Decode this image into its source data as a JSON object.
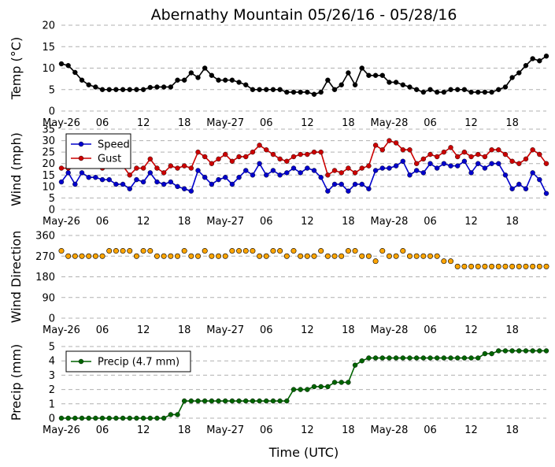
{
  "chart_data": {
    "title": "Abernathy Mountain 05/26/16 - 05/28/16",
    "xlabel": "Time (UTC)",
    "x_ticks": [
      "May-26",
      "06",
      "12",
      "18",
      "May-27",
      "06",
      "12",
      "18",
      "May-28",
      "06",
      "12",
      "18"
    ],
    "x_hours": [
      0,
      6,
      12,
      18,
      24,
      30,
      36,
      42,
      48,
      54,
      60,
      66
    ],
    "x_range_hours": [
      0,
      71
    ],
    "grid": "horizontal dashed",
    "panels": [
      {
        "id": "temp",
        "type": "line",
        "ylabel": "Temp (°C)",
        "ylim": [
          0,
          20
        ],
        "yticks": [
          0,
          5,
          10,
          15,
          20
        ],
        "series": [
          {
            "color": "#000000",
            "x": [
              0,
              1,
              2,
              3,
              4,
              5,
              6,
              7,
              8,
              9,
              10,
              11,
              12,
              13,
              14,
              15,
              16,
              17,
              18,
              19,
              20,
              21,
              22,
              23,
              24,
              25,
              26,
              27,
              28,
              29,
              30,
              31,
              32,
              33,
              34,
              35,
              36,
              37,
              38,
              39,
              40,
              41,
              42,
              43,
              44,
              45,
              46,
              47,
              48,
              49,
              50,
              51,
              52,
              53,
              54,
              55,
              56,
              57,
              58,
              59,
              60,
              61,
              62,
              63,
              64,
              65,
              66,
              67,
              68,
              69,
              70,
              71
            ],
            "values": [
              11,
              10.6,
              9,
              7.2,
              6.1,
              5.6,
              5,
              5,
              5,
              5,
              5,
              5,
              5,
              5.5,
              5.6,
              5.6,
              5.6,
              7.2,
              7.2,
              8.9,
              7.8,
              10,
              8.3,
              7.2,
              7.2,
              7.2,
              6.7,
              6.1,
              5,
              5,
              5,
              5,
              5,
              4.4,
              4.4,
              4.4,
              4.4,
              3.9,
              4.4,
              7.2,
              5,
              6.1,
              8.9,
              6.1,
              10,
              8.3,
              8.3,
              8.3,
              6.7,
              6.7,
              6.1,
              5.6,
              5,
              4.4,
              5,
              4.4,
              4.4,
              5,
              5,
              5,
              4.4,
              4.4,
              4.4,
              4.4,
              5,
              5.6,
              7.8,
              8.9,
              10.6,
              12.2,
              11.7,
              12.8
            ]
          }
        ]
      },
      {
        "id": "wind",
        "type": "line",
        "ylabel": "Wind (mph)",
        "ylim": [
          0,
          35
        ],
        "yticks": [
          0,
          5,
          10,
          15,
          20,
          25,
          30,
          35
        ],
        "legend": "upper-left",
        "series": [
          {
            "name": "Speed",
            "color": "#0000cc",
            "x": [
              0,
              1,
              2,
              3,
              4,
              5,
              6,
              7,
              8,
              9,
              10,
              11,
              12,
              13,
              14,
              15,
              16,
              17,
              18,
              19,
              20,
              21,
              22,
              23,
              24,
              25,
              26,
              27,
              28,
              29,
              30,
              31,
              32,
              33,
              34,
              35,
              36,
              37,
              38,
              39,
              40,
              41,
              42,
              43,
              44,
              45,
              46,
              47,
              48,
              49,
              50,
              51,
              52,
              53,
              54,
              55,
              56,
              57,
              58,
              59,
              60,
              61,
              62,
              63,
              64,
              65,
              66,
              67,
              68,
              69,
              70,
              71
            ],
            "values": [
              12,
              16,
              11,
              16,
              14,
              14,
              13,
              13,
              11,
              11,
              9,
              13,
              12,
              16,
              12,
              11,
              12,
              10,
              9,
              8,
              17,
              14,
              11,
              13,
              14,
              11,
              14,
              17,
              15,
              20,
              15,
              17,
              15,
              16,
              18,
              16,
              18,
              17,
              14,
              8,
              11,
              11,
              8,
              11,
              11,
              9,
              17,
              18,
              18,
              19,
              21,
              15,
              17,
              16,
              20,
              18,
              20,
              19,
              19,
              21,
              16,
              20,
              18,
              20,
              20,
              15,
              9,
              11,
              9,
              16,
              13,
              7
            ]
          },
          {
            "name": "Gust",
            "color": "#cc0000",
            "x": [
              0,
              1,
              2,
              3,
              4,
              5,
              6,
              7,
              8,
              9,
              10,
              11,
              12,
              13,
              14,
              15,
              16,
              17,
              18,
              19,
              20,
              21,
              22,
              23,
              24,
              25,
              26,
              27,
              28,
              29,
              30,
              31,
              32,
              33,
              34,
              35,
              36,
              37,
              38,
              39,
              40,
              41,
              42,
              43,
              44,
              45,
              46,
              47,
              48,
              49,
              50,
              51,
              52,
              53,
              54,
              55,
              56,
              57,
              58,
              59,
              60,
              61,
              62,
              63,
              64,
              65,
              66,
              67,
              68,
              69,
              70,
              71
            ],
            "values": [
              18,
              18,
              19,
              19,
              19,
              19,
              18,
              19,
              19,
              19,
              15,
              18,
              18,
              22,
              18,
              16,
              19,
              18,
              19,
              18,
              25,
              23,
              20,
              22,
              24,
              21,
              23,
              23,
              25,
              28,
              26,
              24,
              22,
              21,
              23,
              24,
              24,
              25,
              25,
              15,
              17,
              16,
              18,
              16,
              18,
              19,
              28,
              26,
              30,
              29,
              26,
              26,
              20,
              22,
              24,
              23,
              25,
              27,
              23,
              25,
              23,
              24,
              23,
              26,
              26,
              24,
              21,
              20,
              22,
              26,
              24,
              20
            ]
          }
        ]
      },
      {
        "id": "direction",
        "type": "scatter",
        "ylabel": "Wind Direction",
        "ylim": [
          0,
          360
        ],
        "yticks": [
          0,
          90,
          180,
          270,
          360
        ],
        "series": [
          {
            "color": "#ffa500",
            "x": [
              0,
              1,
              2,
              3,
              4,
              5,
              6,
              7,
              8,
              9,
              10,
              11,
              12,
              13,
              14,
              15,
              16,
              17,
              18,
              19,
              20,
              21,
              22,
              23,
              24,
              25,
              26,
              27,
              28,
              29,
              30,
              31,
              32,
              33,
              34,
              35,
              36,
              37,
              38,
              39,
              40,
              41,
              42,
              43,
              44,
              45,
              46,
              47,
              48,
              49,
              50,
              51,
              52,
              53,
              54,
              55,
              56,
              57,
              58,
              59,
              60,
              61,
              62,
              63,
              64,
              65,
              66,
              67,
              68,
              69,
              70,
              71
            ],
            "values": [
              293,
              270,
              270,
              270,
              270,
              270,
              270,
              293,
              293,
              293,
              293,
              270,
              293,
              293,
              270,
              270,
              270,
              270,
              293,
              270,
              270,
              293,
              270,
              270,
              270,
              293,
              293,
              293,
              293,
              270,
              270,
              293,
              293,
              270,
              293,
              270,
              270,
              270,
              293,
              270,
              270,
              270,
              293,
              293,
              270,
              270,
              248,
              293,
              270,
              270,
              293,
              270,
              270,
              270,
              270,
              270,
              248,
              248,
              225,
              225,
              225,
              225,
              225,
              225,
              225,
              225,
              225,
              225,
              225,
              225,
              225,
              225
            ]
          }
        ]
      },
      {
        "id": "precip",
        "type": "line",
        "ylabel": "Precip (mm)",
        "ylim": [
          0,
          5
        ],
        "yticks": [
          0,
          1,
          2,
          3,
          4,
          5
        ],
        "legend": "upper-left",
        "series": [
          {
            "name": "Precip (4.7 mm)",
            "color": "#006400",
            "x": [
              0,
              1,
              2,
              3,
              4,
              5,
              6,
              7,
              8,
              9,
              10,
              11,
              12,
              13,
              14,
              15,
              16,
              17,
              18,
              19,
              20,
              21,
              22,
              23,
              24,
              25,
              26,
              27,
              28,
              29,
              30,
              31,
              32,
              33,
              34,
              35,
              36,
              37,
              38,
              39,
              40,
              41,
              42,
              43,
              44,
              45,
              46,
              47,
              48,
              49,
              50,
              51,
              52,
              53,
              54,
              55,
              56,
              57,
              58,
              59,
              60,
              61,
              62,
              63,
              64,
              65,
              66,
              67,
              68,
              69,
              70,
              71
            ],
            "values": [
              0,
              0,
              0,
              0,
              0,
              0,
              0,
              0,
              0,
              0,
              0,
              0,
              0,
              0,
              0,
              0,
              0.25,
              0.25,
              1.2,
              1.2,
              1.2,
              1.2,
              1.2,
              1.2,
              1.2,
              1.2,
              1.2,
              1.2,
              1.2,
              1.2,
              1.2,
              1.2,
              1.2,
              1.2,
              2,
              2,
              2,
              2.2,
              2.2,
              2.2,
              2.5,
              2.5,
              2.5,
              3.7,
              4,
              4.2,
              4.2,
              4.2,
              4.2,
              4.2,
              4.2,
              4.2,
              4.2,
              4.2,
              4.2,
              4.2,
              4.2,
              4.2,
              4.2,
              4.2,
              4.2,
              4.2,
              4.5,
              4.5,
              4.7,
              4.7,
              4.7,
              4.7,
              4.7,
              4.7,
              4.7,
              4.7
            ]
          }
        ]
      }
    ]
  }
}
